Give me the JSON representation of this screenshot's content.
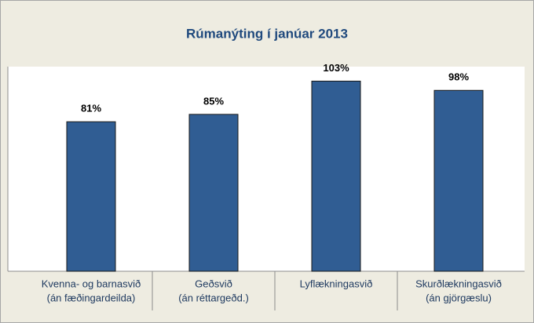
{
  "chart_data": {
    "type": "bar",
    "title": "Rúmanýting í janúar 2013",
    "categories": [
      [
        "Kvenna- og barnasvið",
        "(án fæðingardeilda)"
      ],
      [
        "Geðsvið",
        "(án réttargeðd.)"
      ],
      [
        "Lyflækningasvið"
      ],
      [
        "Skurðlækningasvið",
        "(án gjörgæslu)"
      ]
    ],
    "values": [
      81,
      85,
      103,
      98
    ],
    "value_labels": [
      "81%",
      "85%",
      "103%",
      "98%"
    ],
    "color": "#305d93",
    "ylim": [
      0,
      110
    ]
  }
}
